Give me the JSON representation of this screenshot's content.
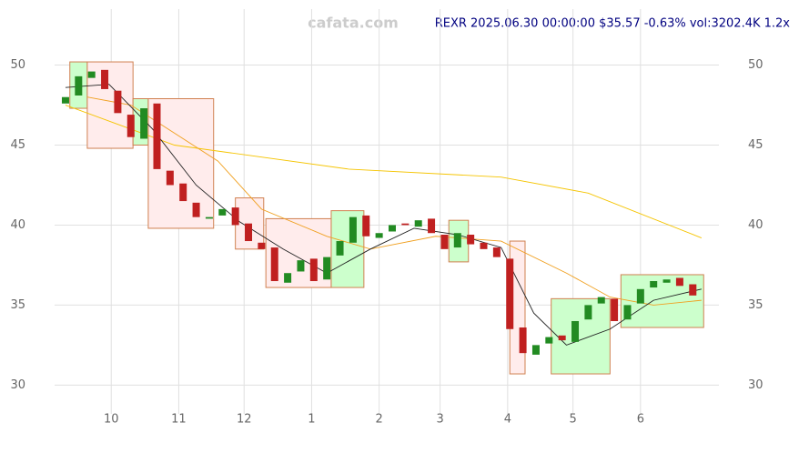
{
  "chart_data": {
    "type": "candlestick",
    "watermark": "cafata.com",
    "title": "REXR 2025.06.30 00:00:00 $35.57 -0.63% vol:3202.4K 1.2x",
    "x": [
      0,
      6,
      12,
      18,
      24,
      30,
      36,
      42,
      48,
      54,
      60,
      66,
      72,
      78,
      84,
      90,
      96,
      102,
      108,
      114,
      120,
      126,
      132,
      138,
      144,
      150,
      156,
      162,
      168,
      174,
      180,
      186,
      192,
      198,
      204,
      210,
      216,
      222,
      228,
      234,
      240,
      246,
      252,
      258,
      264,
      270,
      276,
      282,
      288
    ],
    "open": [
      47.6,
      48.1,
      49.2,
      49.7,
      48.4,
      46.9,
      45.4,
      47.6,
      43.4,
      42.6,
      41.4,
      40.4,
      40.6,
      41.1,
      40.1,
      38.9,
      38.6,
      36.4,
      37.1,
      37.9,
      36.6,
      38.1,
      38.9,
      40.6,
      39.2,
      39.6,
      40.1,
      39.9,
      40.4,
      39.4,
      38.6,
      39.4,
      38.9,
      38.6,
      37.9,
      33.6,
      31.9,
      32.6,
      33.1,
      32.7,
      34.1,
      35.1,
      35.4,
      34.1,
      35.1,
      36.1,
      36.4,
      36.7,
      36.3
    ],
    "close": [
      48.0,
      49.3,
      49.6,
      48.5,
      47.0,
      45.5,
      47.3,
      43.5,
      42.5,
      41.5,
      40.5,
      40.5,
      41.0,
      40.0,
      39.0,
      38.5,
      36.5,
      37.0,
      37.8,
      36.5,
      38.0,
      39.0,
      40.5,
      39.3,
      39.5,
      40.0,
      40.0,
      40.3,
      39.5,
      38.5,
      39.5,
      38.8,
      38.5,
      38.0,
      33.5,
      32.0,
      32.5,
      33.0,
      32.8,
      34.0,
      35.0,
      35.5,
      34.0,
      35.0,
      36.0,
      36.5,
      36.6,
      36.2,
      35.6
    ],
    "up_color": "#228b22",
    "down_color": "#c02020",
    "series": [
      {
        "color": "#f5c400",
        "x": [
          0,
          50,
          130,
          200,
          240,
          292
        ],
        "values": [
          47.5,
          45.0,
          43.5,
          43.0,
          42.0,
          39.2
        ]
      },
      {
        "color": "#f0a020",
        "x": [
          10,
          30,
          70,
          90,
          120,
          140,
          170,
          200,
          230,
          250,
          270,
          292
        ],
        "values": [
          48.0,
          47.5,
          44.0,
          41.0,
          39.3,
          38.5,
          39.3,
          39.0,
          37.0,
          35.5,
          35.0,
          35.3
        ]
      },
      {
        "color": "#222222",
        "x": [
          0,
          20,
          40,
          60,
          80,
          100,
          120,
          140,
          160,
          180,
          200,
          215,
          230,
          250,
          270,
          292
        ],
        "values": [
          48.6,
          48.8,
          46.0,
          42.5,
          40.2,
          38.5,
          37.0,
          38.5,
          39.8,
          39.4,
          38.6,
          34.5,
          32.5,
          33.5,
          35.3,
          36.0
        ]
      }
    ],
    "boxes": [
      {
        "x0": 2,
        "x1": 10,
        "y0": 47.3,
        "y1": 50.2,
        "color": "#ccffcc"
      },
      {
        "x0": 10,
        "x1": 31,
        "y0": 44.8,
        "y1": 50.2,
        "color": "#ffecec"
      },
      {
        "x0": 31,
        "x1": 38,
        "y0": 45.0,
        "y1": 47.9,
        "color": "#ccffcc"
      },
      {
        "x0": 38,
        "x1": 68,
        "y0": 39.8,
        "y1": 47.9,
        "color": "#ffecec"
      },
      {
        "x0": 78,
        "x1": 91,
        "y0": 38.5,
        "y1": 41.7,
        "color": "#ffecec"
      },
      {
        "x0": 92,
        "x1": 122,
        "y0": 36.1,
        "y1": 40.4,
        "color": "#ffecec"
      },
      {
        "x0": 122,
        "x1": 137,
        "y0": 36.1,
        "y1": 40.9,
        "color": "#ccffcc"
      },
      {
        "x0": 176,
        "x1": 185,
        "y0": 37.7,
        "y1": 40.3,
        "color": "#ccffcc"
      },
      {
        "x0": 204,
        "x1": 211,
        "y0": 30.7,
        "y1": 39.0,
        "color": "#ffecec"
      },
      {
        "x0": 223,
        "x1": 250,
        "y0": 30.7,
        "y1": 35.4,
        "color": "#ccffcc"
      },
      {
        "x0": 255,
        "x1": 293,
        "y0": 33.6,
        "y1": 36.9,
        "color": "#ccffcc"
      }
    ],
    "xlim": [
      -5,
      300
    ],
    "ylim": [
      28.2,
      53.5
    ],
    "xticks": [
      {
        "value": 21,
        "label": "10"
      },
      {
        "value": 52,
        "label": "11"
      },
      {
        "value": 82,
        "label": "12"
      },
      {
        "value": 113,
        "label": "1"
      },
      {
        "value": 144,
        "label": "2"
      },
      {
        "value": 172,
        "label": "3"
      },
      {
        "value": 203,
        "label": "4"
      },
      {
        "value": 233,
        "label": "5"
      },
      {
        "value": 264,
        "label": "6"
      }
    ],
    "yticks": [
      30,
      35,
      40,
      45,
      50
    ],
    "grid": true
  }
}
